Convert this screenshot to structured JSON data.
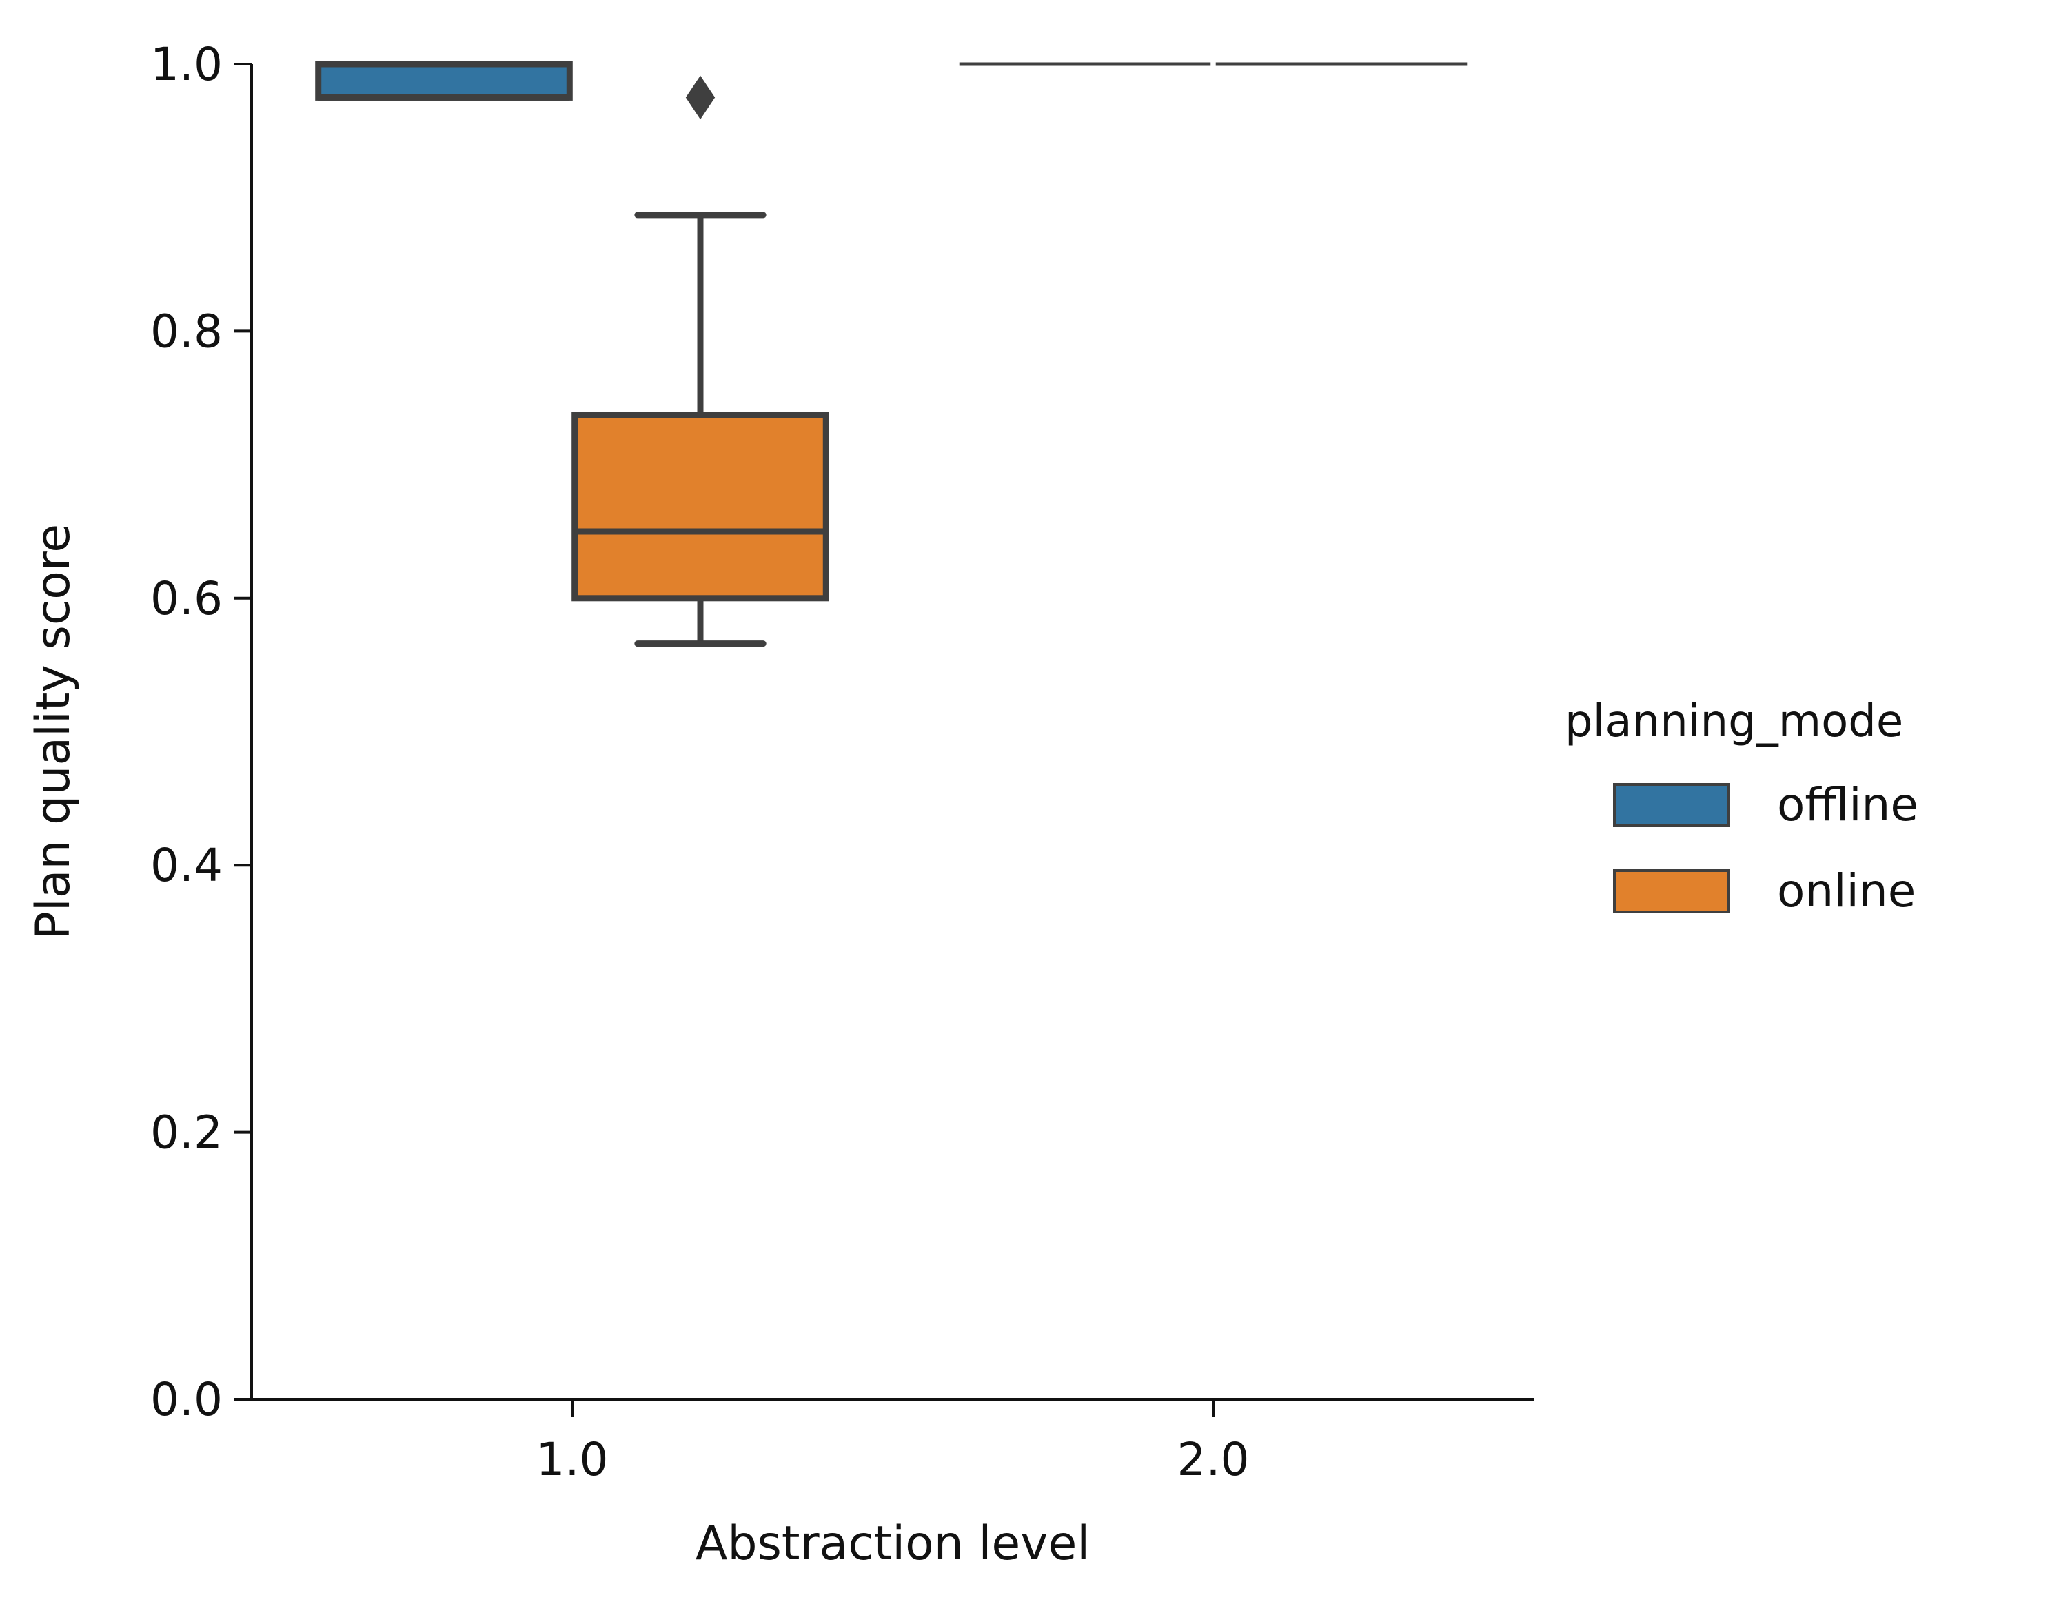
{
  "chart_data": {
    "type": "box",
    "xlabel": "Abstraction level",
    "ylabel": "Plan quality score",
    "categories": [
      "1.0",
      "2.0"
    ],
    "ylim": [
      0.0,
      1.0
    ],
    "yticks": [
      "0.0",
      "0.2",
      "0.4",
      "0.6",
      "0.8",
      "1.0"
    ],
    "grid": false,
    "legend": {
      "title": "planning_mode",
      "placement": "right-center"
    },
    "series": [
      {
        "name": "offline",
        "color": "#3274a1",
        "boxes": [
          {
            "category": "1.0",
            "q1": 0.975,
            "median": 0.975,
            "q3": 1.0,
            "whisker_low": 0.975,
            "whisker_high": 1.0,
            "outliers": []
          },
          {
            "category": "2.0",
            "q1": 1.0,
            "median": 1.0,
            "q3": 1.0,
            "whisker_low": 1.0,
            "whisker_high": 1.0,
            "outliers": []
          }
        ]
      },
      {
        "name": "online",
        "color": "#e1812c",
        "boxes": [
          {
            "category": "1.0",
            "q1": 0.6,
            "median": 0.65,
            "q3": 0.737,
            "whisker_low": 0.566,
            "whisker_high": 0.887,
            "outliers": [
              0.975
            ]
          },
          {
            "category": "2.0",
            "q1": 1.0,
            "median": 1.0,
            "q3": 1.0,
            "whisker_low": 1.0,
            "whisker_high": 1.0,
            "outliers": []
          }
        ]
      }
    ]
  }
}
